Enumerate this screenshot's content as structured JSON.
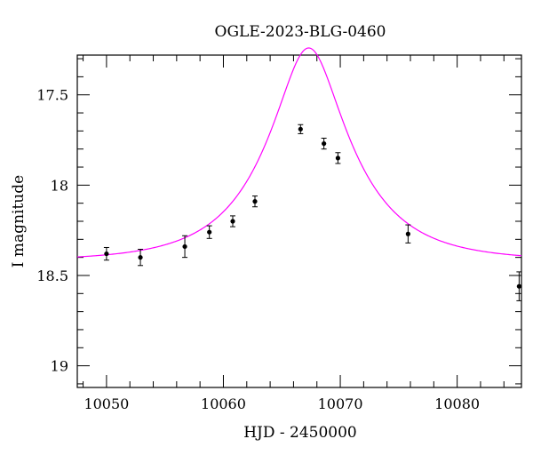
{
  "chart_data": {
    "type": "scatter",
    "title": "OGLE-2023-BLG-0460",
    "xlabel": "HJD - 2450000",
    "ylabel": "I magnitude",
    "xlim": [
      10047.5,
      10085.5
    ],
    "ylim": [
      19.12,
      17.28
    ],
    "y_inverted": true,
    "grid": false,
    "x_ticks": [
      10050,
      10060,
      10070,
      10080
    ],
    "x_tick_labels": [
      "10050",
      "10060",
      "10070",
      "10080"
    ],
    "y_ticks": [
      17.5,
      18,
      18.5,
      19
    ],
    "y_tick_labels": [
      "17.5",
      "18",
      "18.5",
      "19"
    ],
    "curve_color": "#ff00ff",
    "point_color": "#000000",
    "model": {
      "type": "point-lens",
      "t0": 10067.3,
      "u0": 0.353,
      "tE": 7.1,
      "baseline_mag": 18.42
    },
    "series": [
      {
        "points": [
          {
            "x": 10050.0,
            "y": 18.38,
            "err": 0.035
          },
          {
            "x": 10052.9,
            "y": 18.4,
            "err": 0.045
          },
          {
            "x": 10056.7,
            "y": 18.34,
            "err": 0.06
          },
          {
            "x": 10058.8,
            "y": 18.26,
            "err": 0.035
          },
          {
            "x": 10060.8,
            "y": 18.2,
            "err": 0.03
          },
          {
            "x": 10062.7,
            "y": 18.09,
            "err": 0.03
          },
          {
            "x": 10066.6,
            "y": 17.69,
            "err": 0.025
          },
          {
            "x": 10068.6,
            "y": 17.77,
            "err": 0.03
          },
          {
            "x": 10069.8,
            "y": 17.85,
            "err": 0.03
          },
          {
            "x": 10075.8,
            "y": 18.27,
            "err": 0.05
          },
          {
            "x": 10085.3,
            "y": 18.56,
            "err": 0.08
          }
        ]
      }
    ]
  }
}
